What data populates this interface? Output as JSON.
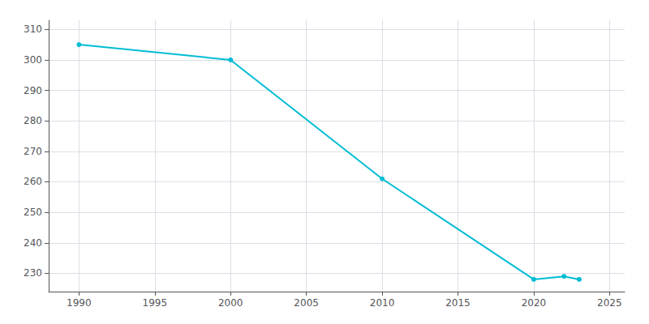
{
  "chart_data": {
    "type": "line",
    "x": [
      1990,
      2000,
      2010,
      2020,
      2022,
      2023
    ],
    "values": [
      305,
      300,
      261,
      228,
      229,
      228
    ],
    "color": "#00bcd4",
    "marker": "circle",
    "xlim": [
      1988,
      2026
    ],
    "ylim": [
      224,
      313
    ],
    "xticks": [
      1990,
      1995,
      2000,
      2005,
      2010,
      2015,
      2020,
      2025
    ],
    "yticks": [
      230,
      240,
      250,
      260,
      270,
      280,
      290,
      300,
      310
    ],
    "grid": true
  }
}
